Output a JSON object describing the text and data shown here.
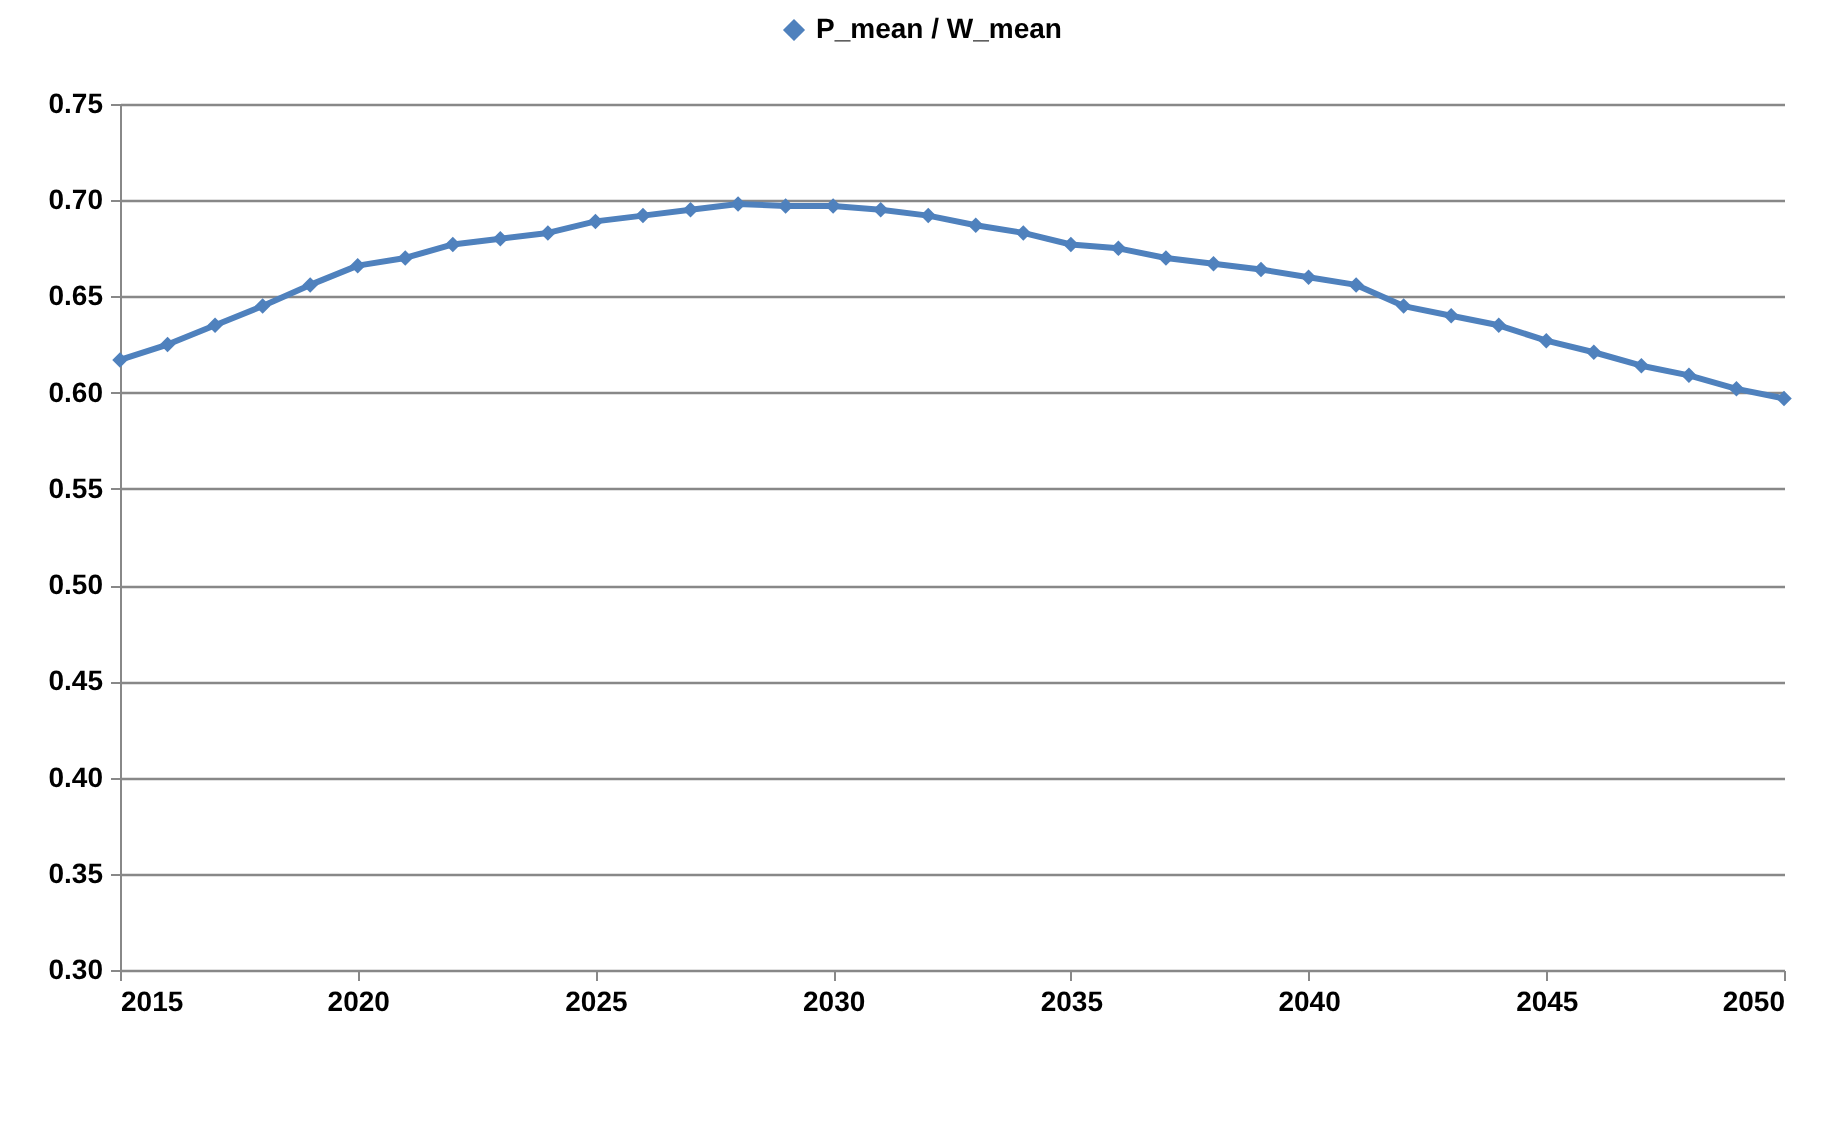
{
  "chart_data": {
    "type": "line",
    "x": [
      2015,
      2016,
      2017,
      2018,
      2019,
      2020,
      2021,
      2022,
      2023,
      2024,
      2025,
      2026,
      2027,
      2028,
      2029,
      2030,
      2031,
      2032,
      2033,
      2034,
      2035,
      2036,
      2037,
      2038,
      2039,
      2040,
      2041,
      2042,
      2043,
      2044,
      2045,
      2046,
      2047,
      2048,
      2049,
      2050
    ],
    "series": [
      {
        "name": "P_mean / W_mean",
        "color": "#4f81bd",
        "values": [
          0.617,
          0.625,
          0.635,
          0.645,
          0.656,
          0.666,
          0.67,
          0.677,
          0.68,
          0.683,
          0.689,
          0.692,
          0.695,
          0.698,
          0.697,
          0.697,
          0.695,
          0.692,
          0.687,
          0.683,
          0.677,
          0.675,
          0.67,
          0.667,
          0.664,
          0.66,
          0.656,
          0.645,
          0.64,
          0.635,
          0.627,
          0.621,
          0.614,
          0.609,
          0.602,
          0.597
        ]
      }
    ],
    "xlim": [
      2015,
      2050
    ],
    "xticks": [
      2015,
      2020,
      2025,
      2030,
      2035,
      2040,
      2045,
      2050
    ],
    "ylim": [
      0.3,
      0.75
    ],
    "yticks": [
      {
        "value": 0.3,
        "label": "0.30"
      },
      {
        "value": 0.35,
        "label": "0.35"
      },
      {
        "value": 0.4,
        "label": "0.40"
      },
      {
        "value": 0.45,
        "label": "0.45"
      },
      {
        "value": 0.5,
        "label": "0.50"
      },
      {
        "value": 0.55,
        "label": "0.55"
      },
      {
        "value": 0.6,
        "label": "0.60"
      },
      {
        "value": 0.65,
        "label": "0.65"
      },
      {
        "value": 0.7,
        "label": "0.70"
      },
      {
        "value": 0.75,
        "label": "0.75"
      }
    ],
    "grid": "y",
    "legend": "top",
    "marker": "diamond",
    "line_style": "solid"
  }
}
